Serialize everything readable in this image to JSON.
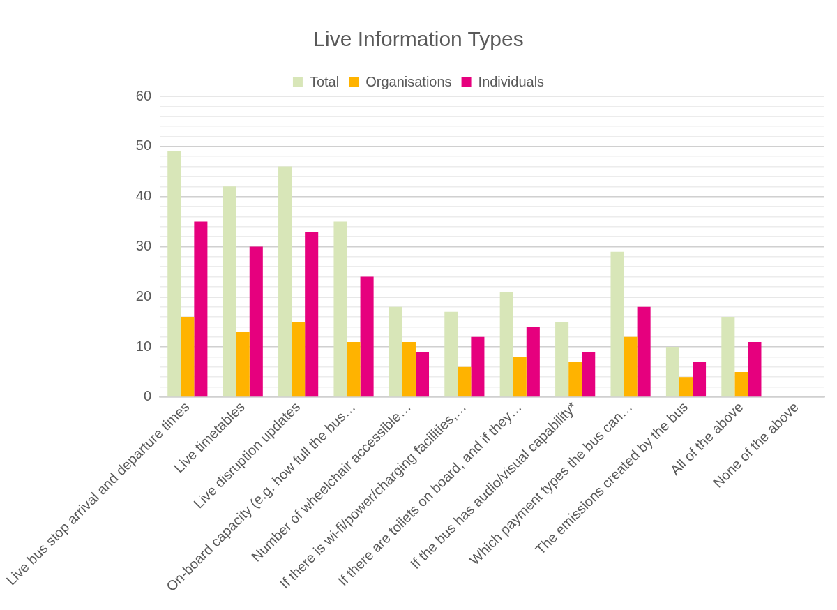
{
  "chart_data": {
    "type": "bar",
    "title": "Live Information Types",
    "categories": [
      "Live bus stop arrival and departure times",
      "Live timetables",
      "Live disruption updates",
      "On-board capacity (e.g. how full the bus…",
      "Number of wheelchair accessible…",
      "If there is wi-fi/power/charging facilities,…",
      "If there are toilets on board, and if they…",
      "If the bus has audio/visual capability*",
      "Which payment types the bus can…",
      "The emissions created by the bus",
      "All of the above",
      "None of the above"
    ],
    "series": [
      {
        "name": "Total",
        "color": "#d8e6b8",
        "values": [
          49,
          42,
          46,
          35,
          18,
          17,
          21,
          15,
          29,
          10,
          16,
          0
        ]
      },
      {
        "name": "Organisations",
        "color": "#ffb300",
        "values": [
          16,
          13,
          15,
          11,
          11,
          6,
          8,
          7,
          12,
          4,
          5,
          0
        ]
      },
      {
        "name": "Individuals",
        "color": "#e6007e",
        "values": [
          35,
          30,
          33,
          24,
          9,
          12,
          14,
          9,
          18,
          7,
          11,
          0
        ]
      }
    ],
    "ylim": [
      0,
      60
    ],
    "yticks": [
      0,
      {
        "value": 2,
        "label": null
      },
      {
        "value": 4,
        "label": null
      },
      {
        "value": 6,
        "label": null
      },
      {
        "value": 8,
        "label": null
      },
      10,
      {
        "value": 12,
        "label": null
      },
      {
        "value": 14,
        "label": null
      },
      {
        "value": 16,
        "label": null
      },
      {
        "value": 18,
        "label": null
      },
      20,
      {
        "value": 22,
        "label": null
      },
      {
        "value": 24,
        "label": null
      },
      {
        "value": 26,
        "label": null
      },
      {
        "value": 28,
        "label": null
      },
      30,
      {
        "value": 32,
        "label": null
      },
      {
        "value": 34,
        "label": null
      },
      {
        "value": 36,
        "label": null
      },
      {
        "value": 38,
        "label": null
      },
      40,
      {
        "value": 42,
        "label": null
      },
      {
        "value": 44,
        "label": null
      },
      {
        "value": 46,
        "label": null
      },
      {
        "value": 48,
        "label": null
      },
      50,
      {
        "value": 52,
        "label": null
      },
      {
        "value": 54,
        "label": null
      },
      {
        "value": 56,
        "label": null
      },
      {
        "value": 58,
        "label": null
      },
      60
    ],
    "grid": "y",
    "legend": "top"
  }
}
